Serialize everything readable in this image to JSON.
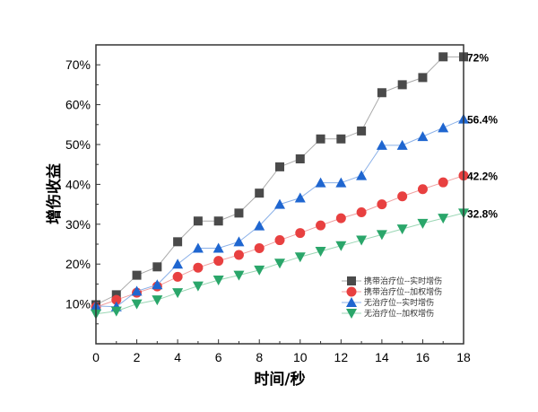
{
  "chart_data": {
    "type": "line",
    "title": "",
    "xlabel": "时间/秒",
    "ylabel": "增伤收益",
    "xlim": [
      0,
      18
    ],
    "ylim": [
      0,
      75
    ],
    "x_ticks": [
      "0",
      "2",
      "4",
      "6",
      "8",
      "10",
      "12",
      "14",
      "16",
      "18"
    ],
    "y_ticks": [
      "10%",
      "20%",
      "30%",
      "40%",
      "50%",
      "60%",
      "70%"
    ],
    "grid": false,
    "legend_position": "bottom-right",
    "x": [
      0,
      1,
      2,
      3,
      4,
      5,
      6,
      7,
      8,
      9,
      10,
      11,
      12,
      13,
      14,
      15,
      16,
      17,
      18
    ],
    "series": [
      {
        "name": "携带治疗位--实时增伤",
        "color": "#4a4a4a",
        "line": "#aaaaaa",
        "marker": "square",
        "end_label": "72%",
        "values": [
          9.8,
          12.3,
          17.2,
          19.3,
          25.6,
          30.8,
          30.8,
          32.8,
          37.8,
          44.4,
          46.4,
          51.4,
          51.4,
          53.4,
          63,
          65,
          66.8,
          72,
          72
        ]
      },
      {
        "name": "携带治疗位--加权增伤",
        "color": "#e84040",
        "line": "#f0a0a0",
        "marker": "circle",
        "end_label": "42.2%",
        "values": [
          9.2,
          11,
          12.8,
          14.4,
          16.8,
          19.1,
          20.8,
          22.3,
          24,
          26,
          27.8,
          29.7,
          31.5,
          33,
          35,
          37,
          38.8,
          40.5,
          42.2
        ]
      },
      {
        "name": "无治疗位--实时增伤",
        "color": "#1f66d0",
        "line": "#8ab0e8",
        "marker": "triangle-up",
        "end_label": "56.4%",
        "values": [
          9.5,
          9.3,
          13.2,
          14.8,
          20,
          24,
          24,
          25.6,
          29.6,
          35,
          36.6,
          40.4,
          40.4,
          42.2,
          49.8,
          49.8,
          52,
          54.2,
          56.4
        ]
      },
      {
        "name": "无治疗位--加权增伤",
        "color": "#2aa66a",
        "line": "#9ad6b4",
        "marker": "triangle-down",
        "end_label": "32.8%",
        "values": [
          7.5,
          8.2,
          10,
          11,
          12.8,
          14.5,
          16,
          17.2,
          18.5,
          20.2,
          21.8,
          23.2,
          24.6,
          26,
          27.4,
          28.8,
          30.2,
          31.5,
          32.8
        ]
      }
    ]
  }
}
